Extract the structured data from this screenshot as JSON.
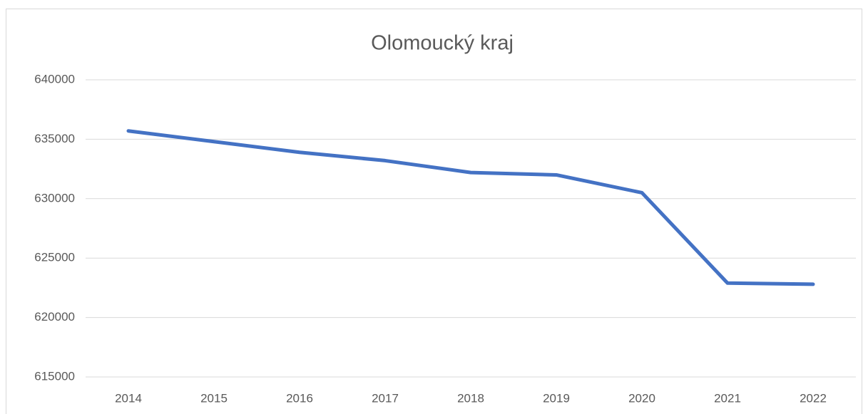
{
  "chart_data": {
    "type": "line",
    "title": "Olomoucký kraj",
    "categories": [
      "2014",
      "2015",
      "2016",
      "2017",
      "2018",
      "2019",
      "2020",
      "2021",
      "2022"
    ],
    "values": [
      635700,
      634800,
      633900,
      633200,
      632200,
      632000,
      630500,
      622900,
      622800
    ],
    "color": "#4472c4",
    "ylim": [
      615000,
      640000
    ],
    "yticks": [
      615000,
      620000,
      625000,
      630000,
      635000,
      640000
    ],
    "grid": true
  }
}
